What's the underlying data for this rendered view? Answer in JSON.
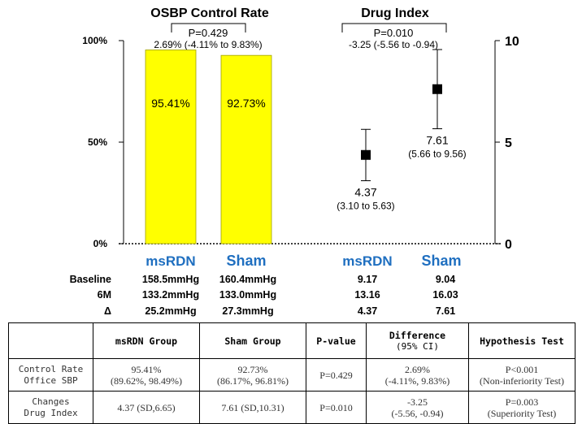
{
  "chart_data": [
    {
      "type": "bar",
      "title": "OSBP Control Rate",
      "categories": [
        "msRDN",
        "Sham"
      ],
      "values": [
        95.41,
        92.73
      ],
      "value_labels": [
        "95.41%",
        "92.73%"
      ],
      "ylim": [
        0,
        100
      ],
      "yticks": [
        "0%",
        "50%",
        "100%"
      ],
      "bar_color": "#ffff00",
      "comparison": {
        "p": "P=0.429",
        "diff": "2.69% (-4.11% to 9.83%)"
      }
    },
    {
      "type": "scatter",
      "title": "Drug Index",
      "categories": [
        "msRDN",
        "Sham"
      ],
      "values": [
        4.37,
        7.61
      ],
      "ci_low": [
        3.1,
        5.66
      ],
      "ci_high": [
        5.63,
        9.56
      ],
      "value_labels": [
        "4.37",
        "7.61"
      ],
      "ci_labels": [
        "(3.10 to 5.63)",
        "(5.66 to 9.56)"
      ],
      "ylim": [
        0,
        10
      ],
      "yticks": [
        "0",
        "5",
        "10"
      ],
      "comparison": {
        "p": "P=0.010",
        "diff": "-3.25 (-5.56 to -0.94)"
      }
    }
  ],
  "category_color": "#1f6fc0",
  "stats": {
    "rows": [
      {
        "label": "Baseline",
        "values": [
          "158.5mmHg",
          "160.4mmHg",
          "9.17",
          "9.04"
        ]
      },
      {
        "label": "6M",
        "values": [
          "133.2mmHg",
          "133.0mmHg",
          "13.16",
          "16.03"
        ]
      },
      {
        "label": "Δ",
        "values": [
          "25.2mmHg",
          "27.3mmHg",
          "4.37",
          "7.61"
        ]
      }
    ]
  },
  "table": {
    "headers": [
      "msRDN Group",
      "Sham Group",
      "P-value",
      "Difference",
      "Hypothesis Test"
    ],
    "difference_sub": "(95% CI)",
    "rows": [
      {
        "label": [
          "Control Rate",
          "Office SBP"
        ],
        "msrdn": [
          "95.41%",
          "(89.62%, 98.49%)"
        ],
        "sham": [
          "92.73%",
          "(86.17%, 96.81%)"
        ],
        "p": "P=0.429",
        "diff": [
          "2.69%",
          "(-4.11%, 9.83%)"
        ],
        "test": [
          "P<0.001",
          "(Non-inferiority Test)"
        ]
      },
      {
        "label": [
          "Changes",
          "Drug Index"
        ],
        "msrdn": [
          "4.37 (SD,6.65)"
        ],
        "sham": [
          "7.61 (SD,10.31)"
        ],
        "p": "P=0.010",
        "diff": [
          "-3.25",
          "(-5.56, -0.94)"
        ],
        "test": [
          "P=0.003",
          "(Superiority Test)"
        ]
      }
    ]
  }
}
